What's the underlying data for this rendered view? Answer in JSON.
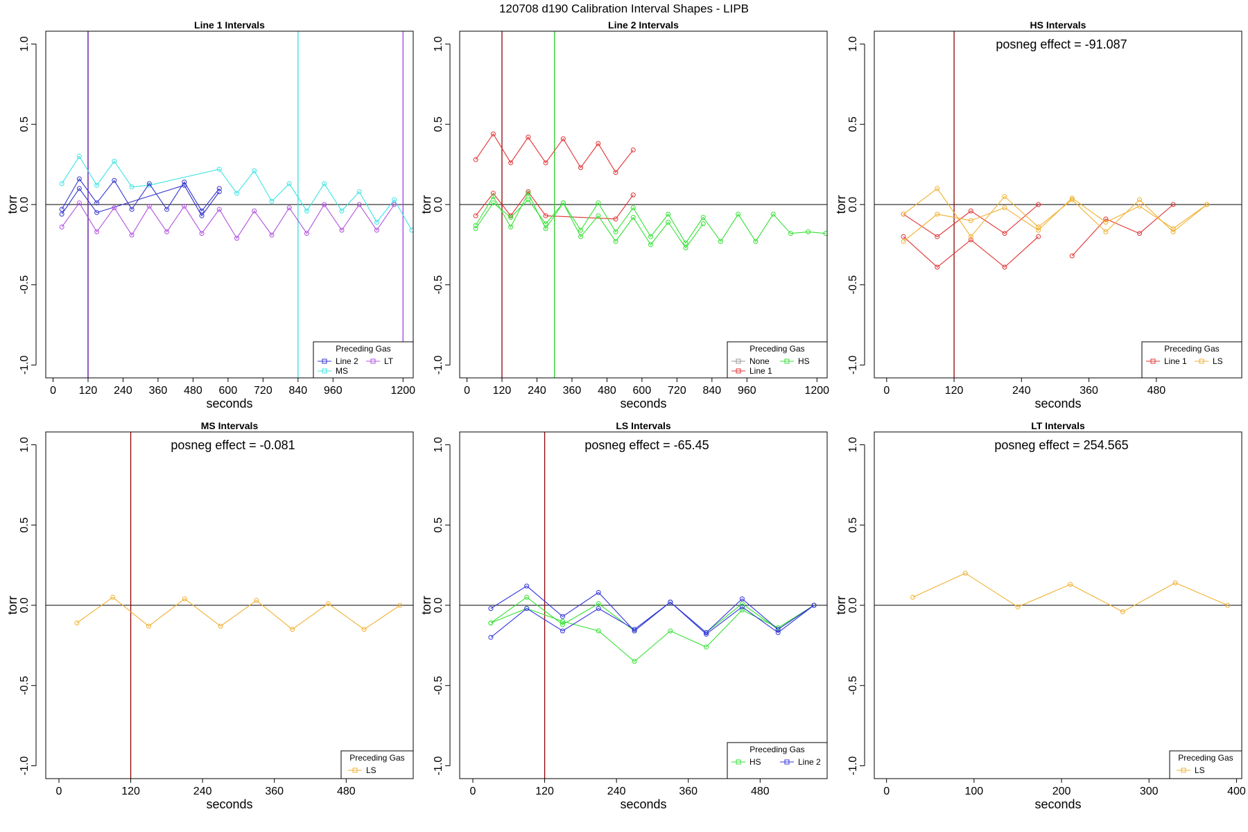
{
  "chart_data": {
    "title": "120708   d190   Calibration Interval Shapes - LIPB",
    "type": "line",
    "panels": [
      {
        "title": "Line 1 Intervals",
        "xlabel": "seconds",
        "ylabel": "torr",
        "xlim": [
          -25,
          1235
        ],
        "ylim": [
          -1.08,
          1.08
        ],
        "xticks": [
          0,
          120,
          240,
          360,
          480,
          600,
          720,
          840,
          960,
          1200
        ],
        "yticks": [
          1.0,
          0.5,
          0.0,
          -0.5,
          -1.0
        ],
        "ytick_labels": [
          "1.0",
          "0.5",
          "0.0",
          "-0.5",
          "-1.0"
        ],
        "hline": 0,
        "vlines": [
          {
            "x": 120,
            "color": "#8e0000"
          },
          {
            "x": 120,
            "color": "#6a2bc9"
          },
          {
            "x": 840,
            "color": "#33e0e0"
          },
          {
            "x": 1200,
            "color": "#a43fe0"
          }
        ],
        "annotation": "",
        "legend": {
          "title": "Preceding Gas",
          "position": "bottom-right",
          "columns": 2,
          "entries": [
            "Line 2",
            "LT",
            "MS"
          ]
        },
        "series": [
          {
            "name": "MS",
            "color": "#3de3e3",
            "x": [
              30,
              90,
              150,
              210,
              270,
              330,
              570,
              630,
              690,
              750,
              810,
              870,
              930,
              990,
              1050,
              1110,
              1170,
              1230
            ],
            "y": [
              0.13,
              0.3,
              0.12,
              0.27,
              0.11,
              0.12,
              0.22,
              0.07,
              0.21,
              0.02,
              0.13,
              -0.04,
              0.13,
              -0.04,
              0.08,
              -0.11,
              0.03,
              -0.16
            ]
          },
          {
            "name": "Line 2",
            "color": "#3333cc",
            "x": [
              30,
              90,
              150,
              210,
              270,
              330,
              390,
              450,
              510,
              570
            ],
            "y": [
              -0.03,
              0.16,
              0.01,
              0.15,
              -0.03,
              0.13,
              -0.03,
              0.14,
              -0.04,
              0.1
            ]
          },
          {
            "name": "Line 2",
            "color": "#3333cc",
            "x": [
              30,
              90,
              150,
              450,
              510,
              570
            ],
            "y": [
              -0.06,
              0.1,
              -0.05,
              0.12,
              -0.07,
              0.08
            ]
          },
          {
            "name": "LT",
            "color": "#b04fdf",
            "x": [
              30,
              90,
              150,
              210,
              270,
              330,
              390,
              450,
              510,
              570,
              630,
              690,
              750,
              810,
              870,
              930,
              990,
              1050,
              1110,
              1170
            ],
            "y": [
              -0.14,
              0.01,
              -0.17,
              -0.02,
              -0.19,
              -0.01,
              -0.17,
              -0.01,
              -0.18,
              -0.03,
              -0.21,
              -0.04,
              -0.19,
              -0.02,
              -0.18,
              0.0,
              -0.16,
              0.0,
              -0.16,
              0.0
            ]
          }
        ]
      },
      {
        "title": "Line 2 Intervals",
        "xlabel": "seconds",
        "ylabel": "torr",
        "xlim": [
          -25,
          1235
        ],
        "ylim": [
          -1.08,
          1.08
        ],
        "xticks": [
          0,
          120,
          240,
          360,
          480,
          600,
          720,
          840,
          960,
          1200
        ],
        "yticks": [
          1.0,
          0.5,
          0.0,
          -0.5,
          -1.0
        ],
        "ytick_labels": [
          "1.0",
          "0.5",
          "0.0",
          "-0.5",
          "-1.0"
        ],
        "hline": 0,
        "vlines": [
          {
            "x": 120,
            "color": "#8e0000"
          },
          {
            "x": 300,
            "color": "#2ecc2e"
          }
        ],
        "annotation": "",
        "legend": {
          "title": "Preceding Gas",
          "position": "bottom-right",
          "columns": 2,
          "entries": [
            "None",
            "HS",
            "Line 1"
          ]
        },
        "series": [
          {
            "name": "Line 1",
            "color": "#e03030",
            "x": [
              30,
              90,
              150,
              210,
              270,
              330,
              390,
              450,
              510,
              570
            ],
            "y": [
              0.28,
              0.44,
              0.26,
              0.42,
              0.26,
              0.41,
              0.23,
              0.38,
              0.2,
              0.34
            ]
          },
          {
            "name": "Line 1",
            "color": "#e03030",
            "x": [
              30,
              90,
              150,
              210,
              270,
              510,
              570
            ],
            "y": [
              -0.07,
              0.07,
              -0.07,
              0.08,
              -0.07,
              -0.09,
              0.06
            ]
          },
          {
            "name": "HS",
            "color": "#33e033",
            "x": [
              30,
              90,
              150,
              210,
              270,
              330,
              390,
              450,
              510,
              570,
              630,
              690,
              750,
              810,
              870,
              930,
              990,
              1050,
              1110,
              1170,
              1230
            ],
            "y": [
              -0.13,
              0.05,
              -0.14,
              0.07,
              -0.15,
              0.01,
              -0.16,
              0.01,
              -0.17,
              -0.02,
              -0.2,
              -0.06,
              -0.24,
              -0.08,
              -0.23,
              -0.06,
              -0.23,
              -0.06,
              -0.18,
              -0.17,
              -0.18
            ]
          },
          {
            "name": "HS",
            "color": "#33e033",
            "x": [
              30,
              90,
              150,
              210,
              270,
              330,
              390,
              450,
              510,
              570,
              630,
              690,
              750,
              810
            ],
            "y": [
              -0.15,
              0.01,
              -0.08,
              0.03,
              -0.12,
              0.01,
              -0.2,
              -0.07,
              -0.23,
              -0.08,
              -0.25,
              -0.11,
              -0.27,
              -0.12
            ]
          }
        ]
      },
      {
        "title": "HS Intervals",
        "xlabel": "seconds",
        "ylabel": "torr",
        "xlim": [
          -22,
          632
        ],
        "ylim": [
          -1.08,
          1.08
        ],
        "xticks": [
          0,
          120,
          240,
          360,
          480
        ],
        "yticks": [
          1.0,
          0.5,
          0.0,
          -0.5,
          -1.0
        ],
        "ytick_labels": [
          "1.0",
          "0.5",
          "0.0",
          "-0.5",
          "-1.0"
        ],
        "hline": 0,
        "vlines": [
          {
            "x": 120,
            "color": "#8e0000"
          }
        ],
        "annotation": "posneg effect = -91.087",
        "legend": {
          "title": "Preceding Gas",
          "position": "bottom-right",
          "columns": 2,
          "entries": [
            "Line 1",
            "LS"
          ]
        },
        "series": [
          {
            "name": "Line 1",
            "color": "#e03030",
            "x": [
              30,
              90,
              150,
              210,
              270
            ],
            "y": [
              -0.2,
              -0.39,
              -0.22,
              -0.39,
              -0.2
            ]
          },
          {
            "name": "Line 1",
            "color": "#e03030",
            "x": [
              30,
              90,
              150,
              210,
              270
            ],
            "y": [
              -0.06,
              -0.2,
              -0.04,
              -0.18,
              0.0
            ]
          },
          {
            "name": "Line 1",
            "color": "#e03030",
            "x": [
              330,
              390,
              450,
              510
            ],
            "y": [
              -0.32,
              -0.09,
              -0.18,
              0.0
            ]
          },
          {
            "name": "LS",
            "color": "#f0b030",
            "x": [
              30,
              90,
              150,
              210,
              270,
              330,
              390,
              450,
              510,
              570
            ],
            "y": [
              -0.06,
              0.1,
              -0.2,
              0.05,
              -0.14,
              0.03,
              -0.17,
              0.03,
              -0.17,
              0.0
            ]
          },
          {
            "name": "LS",
            "color": "#f0b030",
            "x": [
              30,
              90,
              150,
              210,
              270,
              330,
              390,
              450,
              510,
              570
            ],
            "y": [
              -0.23,
              -0.06,
              -0.1,
              -0.02,
              -0.16,
              0.04,
              -0.11,
              -0.01,
              -0.15,
              0.0
            ]
          }
        ]
      },
      {
        "title": "MS Intervals",
        "xlabel": "seconds",
        "ylabel": "torr",
        "xlim": [
          -22,
          592
        ],
        "ylim": [
          -1.08,
          1.08
        ],
        "xticks": [
          0,
          120,
          240,
          360,
          480
        ],
        "yticks": [
          1.0,
          0.5,
          0.0,
          -0.5,
          -1.0
        ],
        "ytick_labels": [
          "1.0",
          "0.5",
          "0.0",
          "-0.5",
          "-1.0"
        ],
        "hline": 0,
        "vlines": [
          {
            "x": 120,
            "color": "#8e0000"
          }
        ],
        "annotation": "posneg effect = -0.081",
        "legend": {
          "title": "Preceding Gas",
          "position": "bottom-right",
          "columns": 1,
          "entries": [
            "LS"
          ]
        },
        "series": [
          {
            "name": "LS",
            "color": "#f0b030",
            "x": [
              30,
              90,
              150,
              210,
              270,
              330,
              390,
              450,
              510,
              570
            ],
            "y": [
              -0.11,
              0.05,
              -0.13,
              0.04,
              -0.13,
              0.03,
              -0.15,
              0.01,
              -0.15,
              0.0
            ]
          }
        ]
      },
      {
        "title": "LS Intervals",
        "xlabel": "seconds",
        "ylabel": "torr",
        "xlim": [
          -22,
          592
        ],
        "ylim": [
          -1.08,
          1.08
        ],
        "xticks": [
          0,
          120,
          240,
          360,
          480
        ],
        "yticks": [
          1.0,
          0.5,
          0.0,
          -0.5,
          -1.0
        ],
        "ytick_labels": [
          "1.0",
          "0.5",
          "0.0",
          "-0.5",
          "-1.0"
        ],
        "hline": 0,
        "vlines": [
          {
            "x": 120,
            "color": "#8e0000"
          }
        ],
        "annotation": "posneg effect = -65.45",
        "legend": {
          "title": "Preceding Gas",
          "position": "bottom-right",
          "columns": 2,
          "entries": [
            "HS",
            "Line 2"
          ]
        },
        "series": [
          {
            "name": "HS",
            "color": "#33e033",
            "x": [
              30,
              90,
              150,
              210,
              270,
              330,
              390,
              450,
              510,
              570
            ],
            "y": [
              -0.11,
              0.05,
              -0.12,
              0.01,
              -0.16,
              0.02,
              -0.17,
              0.01,
              -0.15,
              0.0
            ]
          },
          {
            "name": "HS",
            "color": "#33e033",
            "x": [
              30,
              90,
              150,
              210,
              270,
              330,
              390,
              450,
              510,
              570
            ],
            "y": [
              -0.11,
              -0.02,
              -0.1,
              -0.16,
              -0.35,
              -0.16,
              -0.26,
              -0.03,
              -0.14,
              0.0
            ]
          },
          {
            "name": "Line 2",
            "color": "#3333dd",
            "x": [
              30,
              90,
              150,
              210,
              270,
              330,
              390,
              450,
              510,
              570
            ],
            "y": [
              -0.02,
              0.12,
              -0.07,
              0.08,
              -0.16,
              0.02,
              -0.17,
              0.04,
              -0.15,
              0.0
            ]
          },
          {
            "name": "Line 2",
            "color": "#3333dd",
            "x": [
              30,
              90,
              150,
              210,
              270,
              330,
              390,
              450,
              510,
              570
            ],
            "y": [
              -0.2,
              -0.02,
              -0.16,
              -0.02,
              -0.15,
              0.02,
              -0.18,
              -0.01,
              -0.17,
              0.0
            ]
          }
        ]
      },
      {
        "title": "LT Intervals",
        "xlabel": "seconds",
        "ylabel": "torr",
        "xlim": [
          -14,
          406
        ],
        "ylim": [
          -1.08,
          1.08
        ],
        "xticks": [
          0,
          100,
          200,
          300,
          400
        ],
        "yticks": [
          1.0,
          0.5,
          0.0,
          -0.5,
          -1.0
        ],
        "ytick_labels": [
          "1.0",
          "0.5",
          "0.0",
          "-0.5",
          "-1.0"
        ],
        "hline": 0,
        "vlines": [],
        "annotation": "posneg effect = 254.565",
        "legend": {
          "title": "Preceding Gas",
          "position": "bottom-right",
          "columns": 1,
          "entries": [
            "LS"
          ]
        },
        "series": [
          {
            "name": "LS",
            "color": "#f0b030",
            "x": [
              30,
              90,
              150,
              210,
              270,
              330,
              390
            ],
            "y": [
              0.05,
              0.2,
              -0.01,
              0.13,
              -0.04,
              0.14,
              0.0
            ]
          }
        ]
      }
    ]
  }
}
